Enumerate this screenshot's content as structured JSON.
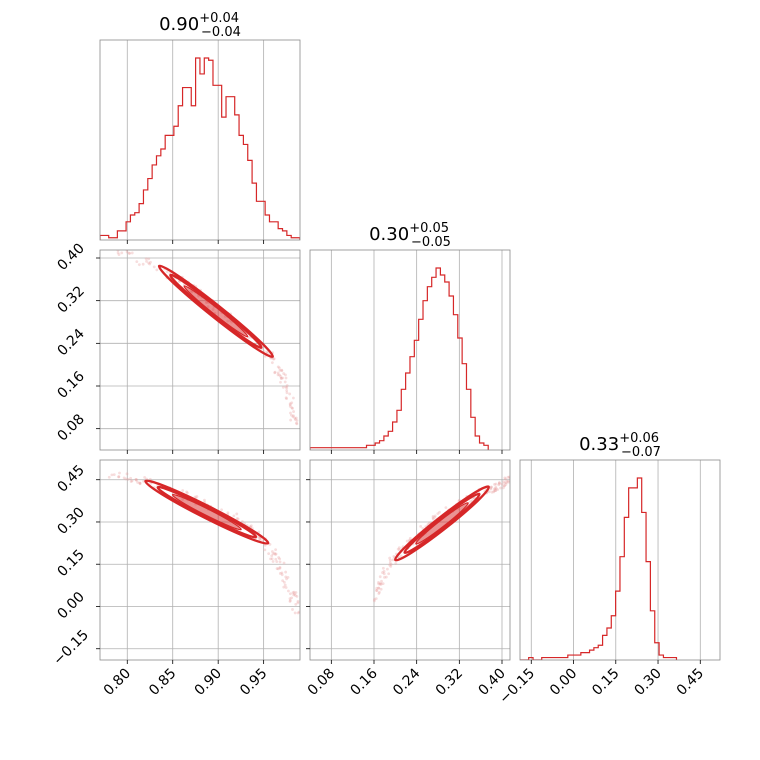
{
  "chart_data": {
    "type": "corner",
    "color": "#d62728",
    "grid": true,
    "parameters": [
      {
        "range": [
          0.77,
          0.99
        ],
        "ticks": [
          0.8,
          0.85,
          0.9,
          0.95
        ],
        "ticklabels": [
          "0.80",
          "0.85",
          "0.90",
          "0.95"
        ],
        "ticklabels_y": [],
        "median": "0.90",
        "plus": "+0.04",
        "minus": "−0.04"
      },
      {
        "range": [
          0.04,
          0.415
        ],
        "ticks": [
          0.08,
          0.16,
          0.24,
          0.32,
          0.4
        ],
        "ticklabels": [
          "0.08",
          "0.16",
          "0.24",
          "0.32",
          "0.40"
        ],
        "ticklabels_y": [
          "0.08",
          "0.16",
          "0.24",
          "0.32",
          "0.40"
        ],
        "median": "0.30",
        "plus": "+0.05",
        "minus": "−0.05"
      },
      {
        "range": [
          -0.19,
          0.52
        ],
        "ticks": [
          -0.15,
          0.0,
          0.15,
          0.3,
          0.45
        ],
        "ticklabels": [
          "−0.15",
          "0.00",
          "0.15",
          "0.30",
          "0.45"
        ],
        "ticklabels_y": [
          "−0.15",
          "0.00",
          "0.15",
          "0.30",
          "0.45"
        ],
        "median": "0.33",
        "plus": "+0.06",
        "minus": "−0.07"
      }
    ],
    "histograms": [
      {
        "bin_start": 0.77,
        "bin_width": 0.00478,
        "counts": [
          2,
          2,
          1,
          1,
          4,
          4,
          8,
          11,
          12,
          16,
          22,
          27,
          33,
          37,
          40,
          46,
          46,
          50,
          59,
          67,
          67,
          59,
          80,
          73,
          80,
          79,
          68,
          68,
          54,
          63,
          63,
          55,
          46,
          42,
          35,
          25,
          17,
          17,
          11,
          8,
          8,
          5,
          4,
          2,
          1,
          1
        ]
      },
      {
        "bin_start": 0.04,
        "bin_width": 0.00815,
        "counts": [
          1,
          1,
          1,
          1,
          1,
          1,
          1,
          1,
          1,
          1,
          1,
          1,
          1,
          2,
          2,
          3,
          4,
          6,
          8,
          12,
          17,
          26,
          33,
          40,
          47,
          56,
          64,
          70,
          74,
          78,
          75,
          72,
          66,
          58,
          48,
          37,
          26,
          14,
          6,
          3,
          2
        ]
      },
      {
        "bin_start": -0.19,
        "bin_width": 0.01543,
        "counts": [
          0,
          0,
          1,
          0,
          0,
          1,
          1,
          1,
          1,
          1,
          1,
          2,
          2,
          2,
          3,
          3,
          4,
          5,
          6,
          10,
          13,
          18,
          28,
          42,
          58,
          70,
          70,
          74,
          60,
          40,
          20,
          7,
          2,
          1,
          1,
          1
        ]
      }
    ],
    "pairs": [
      {
        "x": 0,
        "y": 1,
        "curve": [
          [
            0.79,
            0.415
          ],
          [
            0.83,
            0.384
          ],
          [
            0.87,
            0.345
          ],
          [
            0.9,
            0.305
          ],
          [
            0.93,
            0.262
          ],
          [
            0.96,
            0.212
          ],
          [
            0.975,
            0.16
          ],
          [
            0.985,
            0.085
          ]
        ],
        "core": [
          [
            0.835,
            0.385
          ],
          [
            0.96,
            0.215
          ]
        ],
        "width": 0.012
      },
      {
        "x": 0,
        "y": 2,
        "curve": [
          [
            0.785,
            0.47
          ],
          [
            0.82,
            0.445
          ],
          [
            0.86,
            0.4
          ],
          [
            0.89,
            0.355
          ],
          [
            0.92,
            0.31
          ],
          [
            0.945,
            0.25
          ],
          [
            0.965,
            0.165
          ],
          [
            0.98,
            0.06
          ],
          [
            0.99,
            -0.05
          ]
        ],
        "core": [
          [
            0.82,
            0.445
          ],
          [
            0.955,
            0.225
          ]
        ],
        "width": 0.016
      },
      {
        "x": 1,
        "y": 2,
        "curve": [
          [
            0.16,
            0.03
          ],
          [
            0.18,
            0.12
          ],
          [
            0.21,
            0.2
          ],
          [
            0.25,
            0.27
          ],
          [
            0.29,
            0.33
          ],
          [
            0.33,
            0.37
          ],
          [
            0.37,
            0.41
          ],
          [
            0.4,
            0.435
          ],
          [
            0.415,
            0.45
          ]
        ],
        "core": [
          [
            0.2,
            0.165
          ],
          [
            0.375,
            0.425
          ]
        ],
        "width": 0.018
      }
    ]
  }
}
